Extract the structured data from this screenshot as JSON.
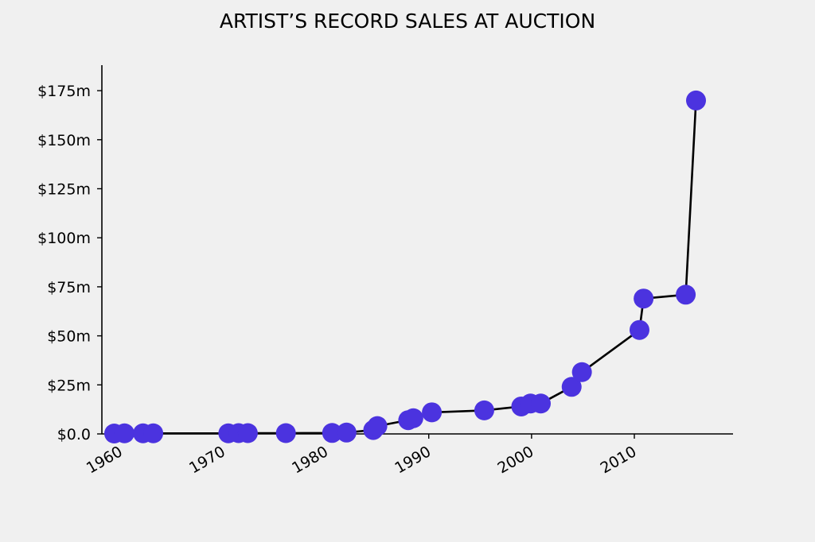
{
  "chart_data": {
    "type": "line",
    "title": "ARTIST’S RECORD SALES AT AUCTION",
    "xlabel": "",
    "ylabel": "",
    "x_ticks": [
      1960,
      1970,
      1980,
      1990,
      2000,
      2010
    ],
    "y_ticks": [
      {
        "value": 0,
        "label": "$0.0"
      },
      {
        "value": 25,
        "label": "$25m"
      },
      {
        "value": 50,
        "label": "$50m"
      },
      {
        "value": 75,
        "label": "$75m"
      },
      {
        "value": 100,
        "label": "$100m"
      },
      {
        "value": 125,
        "label": "$125m"
      },
      {
        "value": 150,
        "label": "$150m"
      },
      {
        "value": 175,
        "label": "$175m"
      }
    ],
    "xlim": [
      1958.2,
      2019.6
    ],
    "ylim": [
      0,
      188
    ],
    "grid": false,
    "colors": {
      "marker": "#4b33df",
      "line": "#000000",
      "background": "#f0f0f0"
    },
    "series": [
      {
        "x": [
          1959.4,
          1960.4,
          1962.2,
          1963.2,
          1970.5,
          1971.5,
          1972.4,
          1976.1,
          1980.6,
          1982.0,
          1984.6,
          1985.0,
          1988.0,
          1988.5,
          1990.3,
          1995.4,
          1999.0,
          1999.9,
          2000.9,
          2003.9,
          2004.9,
          2010.5,
          2010.9,
          2015.0,
          2016.0
        ],
        "y": [
          0.2,
          0.3,
          0.3,
          0.3,
          0.3,
          0.4,
          0.4,
          0.4,
          0.5,
          0.7,
          2.0,
          4.0,
          7.0,
          8.0,
          11.0,
          12.0,
          14.0,
          15.5,
          15.5,
          24.0,
          31.5,
          53.0,
          69.0,
          71.0,
          170.0
        ]
      }
    ]
  }
}
